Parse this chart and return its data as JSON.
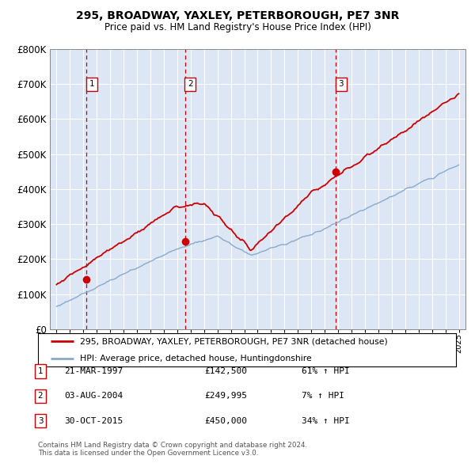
{
  "title": "295, BROADWAY, YAXLEY, PETERBOROUGH, PE7 3NR",
  "subtitle": "Price paid vs. HM Land Registry's House Price Index (HPI)",
  "background_color": "#ffffff",
  "plot_bg_color": "#dce6f5",
  "grid_color": "#ffffff",
  "ylim": [
    0,
    800000
  ],
  "yticks": [
    0,
    100000,
    200000,
    300000,
    400000,
    500000,
    600000,
    700000,
    800000
  ],
  "ytick_labels": [
    "£0",
    "£100K",
    "£200K",
    "£300K",
    "£400K",
    "£500K",
    "£600K",
    "£700K",
    "£800K"
  ],
  "sale_line_color": "#cc0000",
  "sale_dot_color": "#cc0000",
  "hpi_line_color": "#88aacc",
  "legend_entries": [
    "295, BROADWAY, YAXLEY, PETERBOROUGH, PE7 3NR (detached house)",
    "HPI: Average price, detached house, Huntingdonshire"
  ],
  "table_rows": [
    {
      "num": "1",
      "date": "21-MAR-1997",
      "price": "£142,500",
      "hpi": "61% ↑ HPI"
    },
    {
      "num": "2",
      "date": "03-AUG-2004",
      "price": "£249,995",
      "hpi": "7% ↑ HPI"
    },
    {
      "num": "3",
      "date": "30-OCT-2015",
      "price": "£450,000",
      "hpi": "34% ↑ HPI"
    }
  ],
  "footnote": "Contains HM Land Registry data © Crown copyright and database right 2024.\nThis data is licensed under the Open Government Licence v3.0.",
  "xmin": 1994.5,
  "xmax": 2025.5,
  "sale_dates": [
    1997.22,
    2004.58,
    2015.83
  ],
  "sale_prices": [
    142500,
    249995,
    450000
  ],
  "sale_labels": [
    "1",
    "2",
    "3"
  ]
}
